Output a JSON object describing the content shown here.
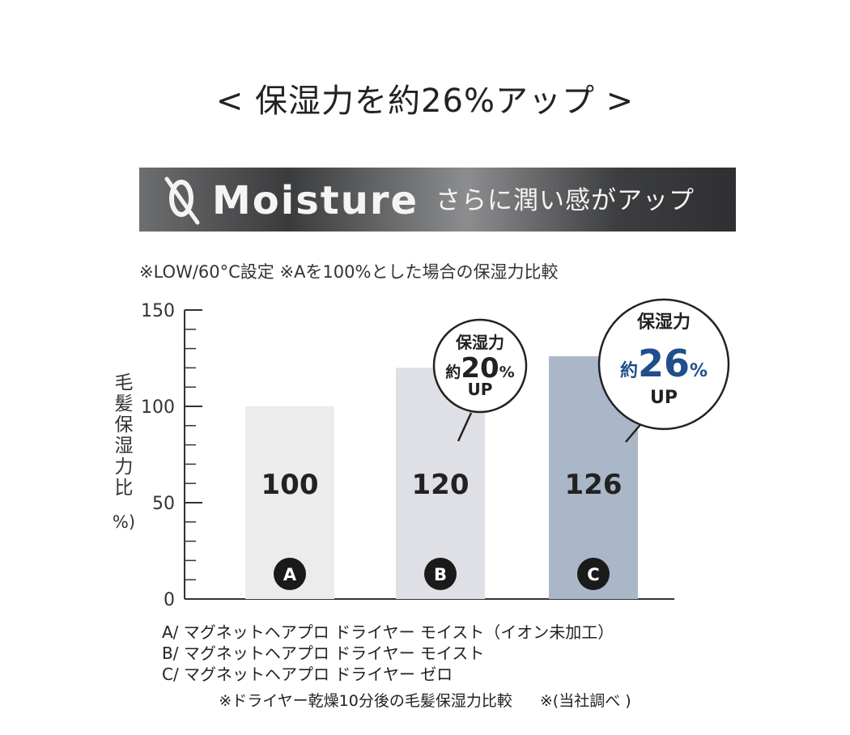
{
  "headline": "< 保湿力を約26%アップ >",
  "banner": {
    "word": "Moisture",
    "sub": "さらに潤い感がアップ",
    "logo_icon": "moisture-q-logo"
  },
  "note": "※LOW/60°C設定 ※Aを100%とした場合の保湿力比較",
  "chart_data": {
    "type": "bar",
    "categories": [
      "A",
      "B",
      "C"
    ],
    "values": [
      100,
      120,
      126
    ],
    "value_labels": [
      "100",
      "120",
      "126"
    ],
    "ylabel": "毛髪保湿力比（%）",
    "ylim": [
      0,
      150
    ],
    "yticks": [
      "0",
      "50",
      "100",
      "150"
    ],
    "bar_colors": [
      "#ececec",
      "#dfe0e6",
      "#a9b7c8"
    ],
    "grid": false,
    "callouts": [
      {
        "bar": "B",
        "line1": "保湿力",
        "prefix": "約",
        "value": "20",
        "unit": "%",
        "suffix": "UP",
        "accent": "#222222"
      },
      {
        "bar": "C",
        "line1": "保湿力",
        "prefix": "約",
        "value": "26",
        "unit": "%",
        "suffix": "UP",
        "accent": "#1f4f8c"
      }
    ]
  },
  "legend": [
    "A/ マグネットヘアプロ ドライヤー モイスト（イオン未加工）",
    "B/ マグネットヘアプロ ドライヤー モイスト",
    "C/ マグネットヘアプロ ドライヤー ゼロ"
  ],
  "footnotes": [
    "※ドライヤー乾燥10分後の毛髪保湿力比較",
    "※(当社調べ )"
  ]
}
